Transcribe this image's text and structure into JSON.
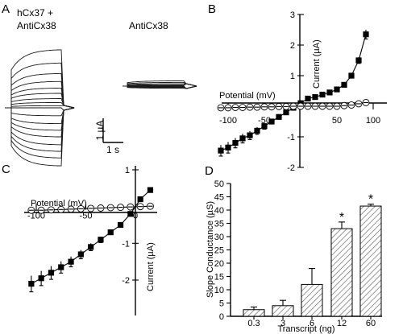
{
  "panel_letters": [
    "A",
    "B",
    "C",
    "D"
  ],
  "chart_data": [
    {
      "panel": "A",
      "type": "line",
      "traces": [
        {
          "label_lines": [
            "hCx37 +",
            "AntiCx38"
          ],
          "n_sweeps": 18,
          "steady_currents_uA": [
            2.2,
            1.7,
            1.3,
            1.0,
            0.75,
            0.55,
            0.35,
            0.2,
            0.08,
            0.0,
            -0.3,
            -0.6,
            -0.85,
            -1.1,
            -1.4,
            -1.65,
            -1.9,
            -2.2
          ]
        },
        {
          "label_lines": [
            "AntiCx38"
          ],
          "n_sweeps": 10,
          "steady_currents_uA": [
            0.2,
            0.14,
            0.09,
            0.05,
            0.02,
            0.0,
            -0.02,
            -0.04,
            -0.06,
            -0.08
          ]
        }
      ],
      "scale_bar": {
        "current_label": "1 µA",
        "time_label": "1 s"
      }
    },
    {
      "panel": "B",
      "type": "scatter",
      "xlabel": "Potential (mV)",
      "ylabel": "Current (µA)",
      "xlim": [
        -120,
        120
      ],
      "ylim": [
        -2,
        3
      ],
      "xticks": [
        -100,
        -50,
        50,
        100
      ],
      "yticks": [
        -2,
        -1,
        1,
        2,
        3
      ],
      "series": [
        {
          "marker": "filled-square",
          "x": [
            -110,
            -100,
            -90,
            -80,
            -70,
            -60,
            -50,
            -40,
            -30,
            -20,
            -10,
            0,
            10,
            20,
            30,
            40,
            50,
            60,
            70,
            80,
            90
          ],
          "y": [
            -1.45,
            -1.35,
            -1.2,
            -1.05,
            -0.95,
            -0.8,
            -0.65,
            -0.5,
            -0.35,
            -0.2,
            -0.05,
            0.1,
            0.25,
            0.3,
            0.38,
            0.45,
            0.55,
            0.7,
            1.0,
            1.5,
            2.35
          ],
          "err": [
            0.18,
            0.18,
            0.16,
            0.15,
            0.14,
            0.12,
            0.1,
            0.08,
            0.06,
            0.05,
            0.03,
            0.03,
            0.04,
            0.04,
            0.05,
            0.05,
            0.06,
            0.08,
            0.08,
            0.1,
            0.15
          ]
        },
        {
          "marker": "open-circle",
          "x": [
            -110,
            -100,
            -90,
            -80,
            -70,
            -60,
            -50,
            -40,
            -30,
            -20,
            -10,
            0,
            10,
            20,
            30,
            40,
            50,
            60,
            70,
            80,
            90
          ],
          "y": [
            -0.05,
            -0.05,
            -0.04,
            -0.04,
            -0.03,
            -0.03,
            -0.02,
            -0.02,
            -0.01,
            -0.01,
            0.0,
            0.0,
            0.0,
            0.0,
            0.0,
            0.0,
            0.0,
            0.02,
            0.04,
            0.08,
            0.12
          ],
          "err": [
            0.03,
            0.03,
            0.03,
            0.02,
            0.02,
            0.02,
            0.02,
            0.02,
            0.01,
            0.01,
            0.01,
            0.01,
            0.01,
            0.01,
            0.01,
            0.01,
            0.01,
            0.02,
            0.02,
            0.03,
            0.04
          ]
        }
      ]
    },
    {
      "panel": "C",
      "type": "scatter",
      "xlabel": "Potential (mV)",
      "ylabel": "Current (µA)",
      "xlim": [
        -110,
        20
      ],
      "ylim": [
        -2.3,
        1.1
      ],
      "xticks": [
        -100,
        -50,
        0
      ],
      "yticks": [
        -2,
        -1,
        1
      ],
      "series": [
        {
          "marker": "filled-square",
          "x": [
            -105,
            -95,
            -85,
            -75,
            -65,
            -55,
            -45,
            -35,
            -25,
            -15,
            -5,
            5,
            15
          ],
          "y": [
            -2.1,
            -1.95,
            -1.8,
            -1.65,
            -1.5,
            -1.3,
            -1.1,
            -0.9,
            -0.7,
            -0.5,
            -0.2,
            0.2,
            0.45
          ],
          "err": [
            0.22,
            0.2,
            0.18,
            0.16,
            0.14,
            0.12,
            0.1,
            0.08,
            0.06,
            0.05,
            0.04,
            0.04,
            0.05
          ]
        },
        {
          "marker": "open-circle",
          "x": [
            -105,
            -95,
            -85,
            -75,
            -65,
            -55,
            -45,
            -35,
            -25,
            -15,
            -5,
            5,
            15
          ],
          "y": [
            -0.1,
            -0.1,
            -0.09,
            -0.08,
            -0.07,
            -0.06,
            -0.05,
            -0.04,
            -0.03,
            -0.02,
            -0.01,
            0.0,
            0.01
          ],
          "err": [
            0.04,
            0.04,
            0.04,
            0.03,
            0.03,
            0.03,
            0.03,
            0.02,
            0.02,
            0.02,
            0.01,
            0.01,
            0.01
          ]
        }
      ]
    },
    {
      "panel": "D",
      "type": "bar",
      "xlabel": "Transcript (ng)",
      "ylabel": "Slope Conductance (µS)",
      "categories": [
        "0.3",
        "3",
        "6",
        "12",
        "60"
      ],
      "values": [
        2.5,
        4,
        12,
        33,
        41.5
      ],
      "errors": [
        1,
        2,
        6,
        2.5,
        0.7
      ],
      "significant": [
        false,
        false,
        false,
        true,
        true
      ],
      "significance_mark": "*",
      "ylim": [
        0,
        50
      ],
      "yticks": [
        0,
        5,
        10,
        15,
        20,
        25,
        30,
        35,
        40,
        45,
        50
      ]
    }
  ]
}
